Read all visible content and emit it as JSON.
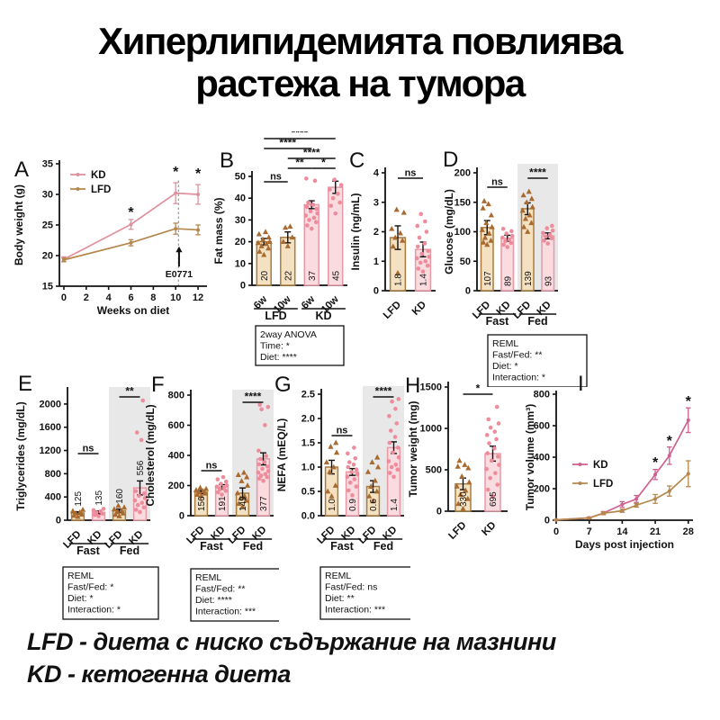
{
  "title": {
    "line1": "Хиперлипидемията повлиява",
    "line2": "растежа на тумора"
  },
  "legend_notes": {
    "line1": "LFD - диета с ниско съдържание на мазнини",
    "line2": "KD - кетогенна диета"
  },
  "colors": {
    "ink": "#111111",
    "kd_line_a": "#e0909d",
    "kd_line_i": "#cf6190",
    "lfd_line": "#b5874d",
    "kd_fill": "#fadbdf",
    "kd_stroke": "#e59aa6",
    "kd_dot": "#ee8c9c",
    "lfd_fill": "#f3e1c2",
    "lfd_stroke": "#a87c3e",
    "lfd_dot": "#a96a30",
    "shade": "#e8e8e8"
  },
  "chart_data": [
    {
      "id": "A",
      "panel_label": "A",
      "type": "line",
      "ylabel": "Body weight (g)",
      "xlabel": "Weeks on diet",
      "ylim": [
        15,
        35
      ],
      "yticks": [
        15,
        20,
        25,
        30,
        35
      ],
      "xlim": [
        -0.4,
        12.8
      ],
      "xticks": [
        0,
        2,
        4,
        6,
        8,
        10,
        12
      ],
      "series": [
        {
          "name": "KD",
          "color": "kd_line_a",
          "x": [
            0,
            6,
            10,
            12
          ],
          "y": [
            19.4,
            25.1,
            30.2,
            30.0
          ],
          "err": [
            0.4,
            0.8,
            1.7,
            1.6
          ]
        },
        {
          "name": "LFD",
          "color": "lfd_line",
          "x": [
            0,
            6,
            10,
            12
          ],
          "y": [
            19.3,
            22.1,
            24.4,
            24.2
          ],
          "err": [
            0.3,
            0.5,
            0.9,
            0.8
          ]
        }
      ],
      "legend": {
        "entries": [
          {
            "label": "KD",
            "color": "kd_line_a"
          },
          {
            "label": "LFD",
            "color": "lfd_line"
          }
        ]
      },
      "stars": [
        {
          "x": 6,
          "y": 26.9
        },
        {
          "x": 10,
          "y": 33.5
        },
        {
          "x": 12,
          "y": 33.2
        }
      ],
      "vline": {
        "x": 10.25,
        "y0": 15,
        "y1": 32.6
      },
      "arrow": {
        "x": 10.3,
        "y_tail": 18.2,
        "y_head": 21.5,
        "label": "E0771",
        "label_y": 16.5
      }
    },
    {
      "id": "B",
      "panel_label": "B",
      "type": "bar",
      "ylabel": "Fat mass (%)",
      "ylim": [
        0,
        50
      ],
      "yticks": [
        0,
        10,
        20,
        30,
        40,
        50
      ],
      "ytick_labels": [
        "0",
        "10",
        "20",
        "30",
        "40",
        "50"
      ],
      "bars": [
        {
          "tick": "6w",
          "style": "lfd",
          "value": 20,
          "err": 1.5,
          "label": "20",
          "points": [
            14,
            15.5,
            17,
            18,
            19,
            19.5,
            20,
            21,
            22,
            23.5,
            24.5
          ]
        },
        {
          "tick": "10w",
          "style": "lfd",
          "value": 22,
          "err": 2.5,
          "label": "22",
          "points": [
            18,
            20,
            22,
            26.5,
            27
          ]
        },
        {
          "tick": "6w",
          "style": "kd",
          "value": 37,
          "err": 1.8,
          "label": "37",
          "points": [
            26,
            27.5,
            29,
            30,
            31,
            32,
            33,
            34,
            35,
            36,
            37,
            38,
            48,
            49
          ]
        },
        {
          "tick": "10w",
          "style": "kd",
          "value": 45,
          "err": 2.8,
          "label": "45",
          "points": [
            33,
            36.5,
            38,
            40,
            42,
            44,
            46,
            48.5
          ]
        }
      ],
      "value_label_pos": "in",
      "group_labels": [
        {
          "label": "LFD",
          "from": 0,
          "to": 1
        },
        {
          "label": "KD",
          "from": 2,
          "to": 3
        }
      ],
      "brackets": [
        {
          "from": 0,
          "to": 3,
          "label": "****",
          "y": 8
        },
        {
          "from": 0,
          "to": 2,
          "label": "****",
          "y": 19
        },
        {
          "from": 1,
          "to": 3,
          "label": "****",
          "y": 30
        },
        {
          "from": 1,
          "to": 2,
          "label": "**",
          "y": 41
        },
        {
          "from": 2,
          "to": 3,
          "label": "*",
          "y": 41
        },
        {
          "from": 0,
          "to": 1,
          "label": "ns",
          "y": 56
        }
      ],
      "stats_box": [
        "2way ANOVA",
        "Time: *",
        "Diet: ****"
      ]
    },
    {
      "id": "C",
      "panel_label": "C",
      "type": "bar",
      "ylabel": "Insulin (ng/mL)",
      "ylim": [
        0,
        4
      ],
      "yticks": [
        0,
        1,
        2,
        3,
        4
      ],
      "ytick_labels": [
        "0",
        "1",
        "2",
        "3",
        "4"
      ],
      "bars": [
        {
          "tick": "LFD",
          "style": "lfd",
          "value": 1.8,
          "err": 0.4,
          "label": "1.8",
          "points": [
            0.6,
            1.5,
            1.7,
            1.8,
            1.95,
            2.1,
            2.65,
            2.75
          ]
        },
        {
          "tick": "KD",
          "style": "kd",
          "value": 1.4,
          "err": 0.25,
          "label": "1.4",
          "points": [
            0.65,
            0.75,
            0.85,
            0.95,
            1.0,
            1.1,
            1.15,
            1.25,
            1.35,
            1.5,
            1.6,
            1.8,
            2.0,
            2.2,
            2.35,
            2.6
          ]
        }
      ],
      "value_label_pos": "in",
      "brackets": [
        {
          "from": 0,
          "to": 1,
          "label": "ns",
          "y": 52
        }
      ]
    },
    {
      "id": "D",
      "panel_label": "D",
      "type": "bar",
      "ylabel": "Glucose (mg/dL)",
      "ylim": [
        0,
        200
      ],
      "yticks": [
        0,
        50,
        100,
        150,
        200
      ],
      "ytick_labels": [
        "0",
        "50",
        "100",
        "150",
        "200"
      ],
      "shade": {
        "from": 2
      },
      "bars": [
        {
          "tick": "LFD",
          "style": "lfd",
          "value": 107,
          "err": 12,
          "label": "107",
          "points": [
            78,
            82,
            85,
            90,
            97,
            103,
            108,
            115,
            128,
            140,
            147,
            152
          ]
        },
        {
          "tick": "KD",
          "style": "kd",
          "value": 89,
          "err": 5,
          "label": "89",
          "points": [
            74,
            78,
            81,
            84,
            87,
            90,
            93,
            97,
            101,
            105
          ]
        },
        {
          "tick": "LFD",
          "style": "lfd",
          "value": 139,
          "err": 10,
          "label": "139",
          "points": [
            100,
            108,
            115,
            122,
            128,
            136,
            142,
            150,
            156,
            162,
            168
          ]
        },
        {
          "tick": "KD",
          "style": "kd",
          "value": 93,
          "err": 5,
          "label": "93",
          "points": [
            80,
            85,
            89,
            92,
            95,
            98,
            102,
            106,
            110
          ]
        }
      ],
      "value_label_pos": "in",
      "group_labels": [
        {
          "label": "Fast",
          "from": 0,
          "to": 1
        },
        {
          "label": "Fed",
          "from": 2,
          "to": 3
        }
      ],
      "brackets": [
        {
          "from": 0,
          "to": 1,
          "label": "ns",
          "y": 62
        },
        {
          "from": 2,
          "to": 3,
          "label": "****",
          "y": 52
        }
      ],
      "stats_box": [
        "REML",
        "Fast/Fed: **",
        "Diet: *",
        "Interaction: *"
      ]
    },
    {
      "id": "E",
      "panel_label": "E",
      "type": "bar",
      "ylabel": "Triglycerides (mg/dL)",
      "ylim": [
        0,
        2200
      ],
      "yticks": [
        0,
        400,
        800,
        1200,
        1600,
        2000
      ],
      "ytick_labels": [
        "0",
        "400",
        "800",
        "1200",
        "1600",
        "2000"
      ],
      "shade": {
        "from": 2
      },
      "bars": [
        {
          "tick": "LFD",
          "style": "lfd",
          "value": 125,
          "err": 20,
          "label": "125",
          "points": [
            60,
            80,
            100,
            118,
            135,
            158,
            180
          ]
        },
        {
          "tick": "KD",
          "style": "kd",
          "value": 135,
          "err": 25,
          "label": "135",
          "points": [
            70,
            90,
            112,
            132,
            152,
            172,
            195
          ]
        },
        {
          "tick": "LFD",
          "style": "lfd",
          "value": 160,
          "err": 30,
          "label": "160",
          "points": [
            70,
            95,
            118,
            140,
            165,
            190,
            220,
            250
          ]
        },
        {
          "tick": "KD",
          "style": "kd",
          "value": 556,
          "err": 120,
          "label": "556",
          "points": [
            140,
            180,
            220,
            260,
            300,
            340,
            380,
            420,
            460,
            500,
            1380,
            1510,
            2060
          ]
        }
      ],
      "value_label_pos": "above",
      "group_labels": [
        {
          "label": "Fast",
          "from": 0,
          "to": 1
        },
        {
          "label": "Fed",
          "from": 2,
          "to": 3
        }
      ],
      "brackets": [
        {
          "from": 0,
          "to": 1,
          "label": "ns",
          "y": 96
        },
        {
          "from": 2,
          "to": 3,
          "label": "**",
          "y": 33
        }
      ],
      "stats_box": [
        "REML",
        "Fast/Fed: *",
        "Diet: *",
        "Interaction: *"
      ]
    },
    {
      "id": "F",
      "panel_label": "F",
      "type": "bar",
      "ylabel": "Cholesterol (mg/dL)",
      "ylim": [
        0,
        800
      ],
      "yticks": [
        0,
        200,
        400,
        600,
        800
      ],
      "ytick_labels": [
        "0",
        "200",
        "400",
        "600",
        "800"
      ],
      "shade": {
        "from": 2
      },
      "bars": [
        {
          "tick": "LFD",
          "style": "lfd",
          "value": 156,
          "err": 10,
          "label": "156",
          "points": [
            130,
            140,
            148,
            155,
            163,
            170,
            178,
            186
          ]
        },
        {
          "tick": "KD",
          "style": "kd",
          "value": 191,
          "err": 15,
          "label": "191",
          "points": [
            140,
            155,
            165,
            175,
            185,
            193,
            201,
            211,
            226,
            241,
            256
          ]
        },
        {
          "tick": "LFD",
          "style": "lfd",
          "value": 149,
          "err": 35,
          "label": "149",
          "points": [
            60,
            80,
            100,
            116,
            130,
            150,
            200,
            230,
            256,
            271,
            286
          ]
        },
        {
          "tick": "KD",
          "style": "kd",
          "value": 377,
          "err": 40,
          "label": "377",
          "points": [
            231,
            246,
            256,
            266,
            276,
            286,
            296,
            311,
            326,
            341,
            356,
            376,
            396,
            431,
            601,
            706,
            721,
            736
          ]
        }
      ],
      "value_label_pos": "in",
      "group_labels": [
        {
          "label": "Fast",
          "from": 0,
          "to": 1
        },
        {
          "label": "Fed",
          "from": 2,
          "to": 3
        }
      ],
      "brackets": [
        {
          "from": 0,
          "to": 1,
          "label": "ns",
          "y": 115
        },
        {
          "from": 2,
          "to": 3,
          "label": "****",
          "y": 39
        }
      ],
      "stats_box": [
        "REML",
        "Fast/Fed: **",
        "Diet: ****",
        "Interaction: ***"
      ]
    },
    {
      "id": "G",
      "panel_label": "G",
      "type": "bar",
      "ylabel": "NEFA (mEQ/L)",
      "ylim": [
        0,
        2.5
      ],
      "yticks": [
        0,
        0.5,
        1,
        1.5,
        2,
        2.5
      ],
      "ytick_labels": [
        "0.0",
        "0.5",
        "1.0",
        "1.5",
        "2.0",
        "2.5"
      ],
      "shade": {
        "from": 2
      },
      "bars": [
        {
          "tick": "LFD",
          "style": "lfd",
          "value": 1.0,
          "err": 0.14,
          "label": "1.0",
          "points": [
            0.4,
            0.5,
            0.62,
            0.9,
            1.0,
            1.1,
            1.3,
            1.42,
            1.5
          ]
        },
        {
          "tick": "KD",
          "style": "kd",
          "value": 0.9,
          "err": 0.07,
          "label": "0.9",
          "points": [
            0.42,
            0.52,
            0.6,
            0.68,
            0.75,
            0.8,
            0.85,
            0.9,
            0.95,
            1.0,
            1.05,
            1.1,
            1.18,
            1.28,
            1.4
          ]
        },
        {
          "tick": "LFD",
          "style": "lfd",
          "value": 0.6,
          "err": 0.12,
          "label": "0.6",
          "points": [
            0.3,
            0.4,
            0.5,
            0.6,
            0.72,
            0.9,
            1.0,
            1.1,
            1.2
          ]
        },
        {
          "tick": "KD",
          "style": "kd",
          "value": 1.4,
          "err": 0.12,
          "label": "1.4",
          "points": [
            0.8,
            0.88,
            0.95,
            1.0,
            1.05,
            1.12,
            1.2,
            1.3,
            1.4,
            1.5,
            1.62,
            1.75,
            1.9,
            2.05,
            2.2,
            2.35,
            2.4
          ]
        }
      ],
      "value_label_pos": "in",
      "group_labels": [
        {
          "label": "Fast",
          "from": 0,
          "to": 1
        },
        {
          "label": "Fed",
          "from": 2,
          "to": 3
        }
      ],
      "brackets": [
        {
          "from": 0,
          "to": 1,
          "label": "ns",
          "y": 76
        },
        {
          "from": 2,
          "to": 3,
          "label": "****",
          "y": 33
        }
      ],
      "stats_box": [
        "REML",
        "Fast/Fed: ns",
        "Diet: **",
        "Interaction: ***"
      ]
    },
    {
      "id": "H",
      "panel_label": "H",
      "type": "bar",
      "ylabel": "Tumor weight (mg)",
      "ylim": [
        0,
        1500
      ],
      "yticks": [
        0,
        500,
        1000,
        1500
      ],
      "ytick_labels": [
        "0",
        "500",
        "1000",
        "1500"
      ],
      "bars": [
        {
          "tick": "LFD",
          "style": "lfd",
          "value": 330,
          "err": 70,
          "label": "330",
          "points": [
            30,
            90,
            150,
            200,
            250,
            300,
            350,
            420,
            520,
            540,
            560,
            610
          ]
        },
        {
          "tick": "KD",
          "style": "kd",
          "value": 695,
          "err": 90,
          "label": "695",
          "points": [
            180,
            260,
            320,
            400,
            460,
            510,
            560,
            610,
            660,
            700,
            760,
            820,
            870,
            920,
            960,
            1010,
            1060,
            1110,
            1260
          ]
        }
      ],
      "value_label_pos": "in",
      "brackets": [
        {
          "from": 0,
          "to": 1,
          "label": "*",
          "y": 30
        }
      ]
    },
    {
      "id": "I",
      "panel_label": "I",
      "type": "line",
      "ylabel": "Tumor volume (mm³)",
      "xlabel": "Days post injection",
      "ylim": [
        0,
        800
      ],
      "yticks": [
        0,
        200,
        400,
        600,
        800
      ],
      "xlim": [
        0,
        29
      ],
      "xticks": [
        0,
        7,
        14,
        21,
        28
      ],
      "series": [
        {
          "name": "KD",
          "color": "kd_line_i",
          "x": [
            0,
            7,
            10,
            14,
            17,
            21,
            24,
            28
          ],
          "y": [
            2,
            15,
            45,
            100,
            135,
            290,
            410,
            635
          ],
          "err": [
            2,
            5,
            10,
            18,
            22,
            32,
            55,
            78
          ]
        },
        {
          "name": "LFD",
          "color": "lfd_line",
          "x": [
            0,
            7,
            10,
            14,
            17,
            21,
            24,
            28
          ],
          "y": [
            2,
            14,
            44,
            60,
            95,
            135,
            185,
            295
          ],
          "err": [
            2,
            4,
            8,
            10,
            12,
            28,
            32,
            82
          ]
        }
      ],
      "legend": {
        "entries": [
          {
            "label": "KD",
            "color": "kd_line_i"
          },
          {
            "label": "LFD",
            "color": "lfd_line"
          }
        ]
      },
      "stars": [
        {
          "x": 21,
          "y": 360
        },
        {
          "x": 24,
          "y": 497
        },
        {
          "x": 28,
          "y": 748
        }
      ]
    }
  ]
}
